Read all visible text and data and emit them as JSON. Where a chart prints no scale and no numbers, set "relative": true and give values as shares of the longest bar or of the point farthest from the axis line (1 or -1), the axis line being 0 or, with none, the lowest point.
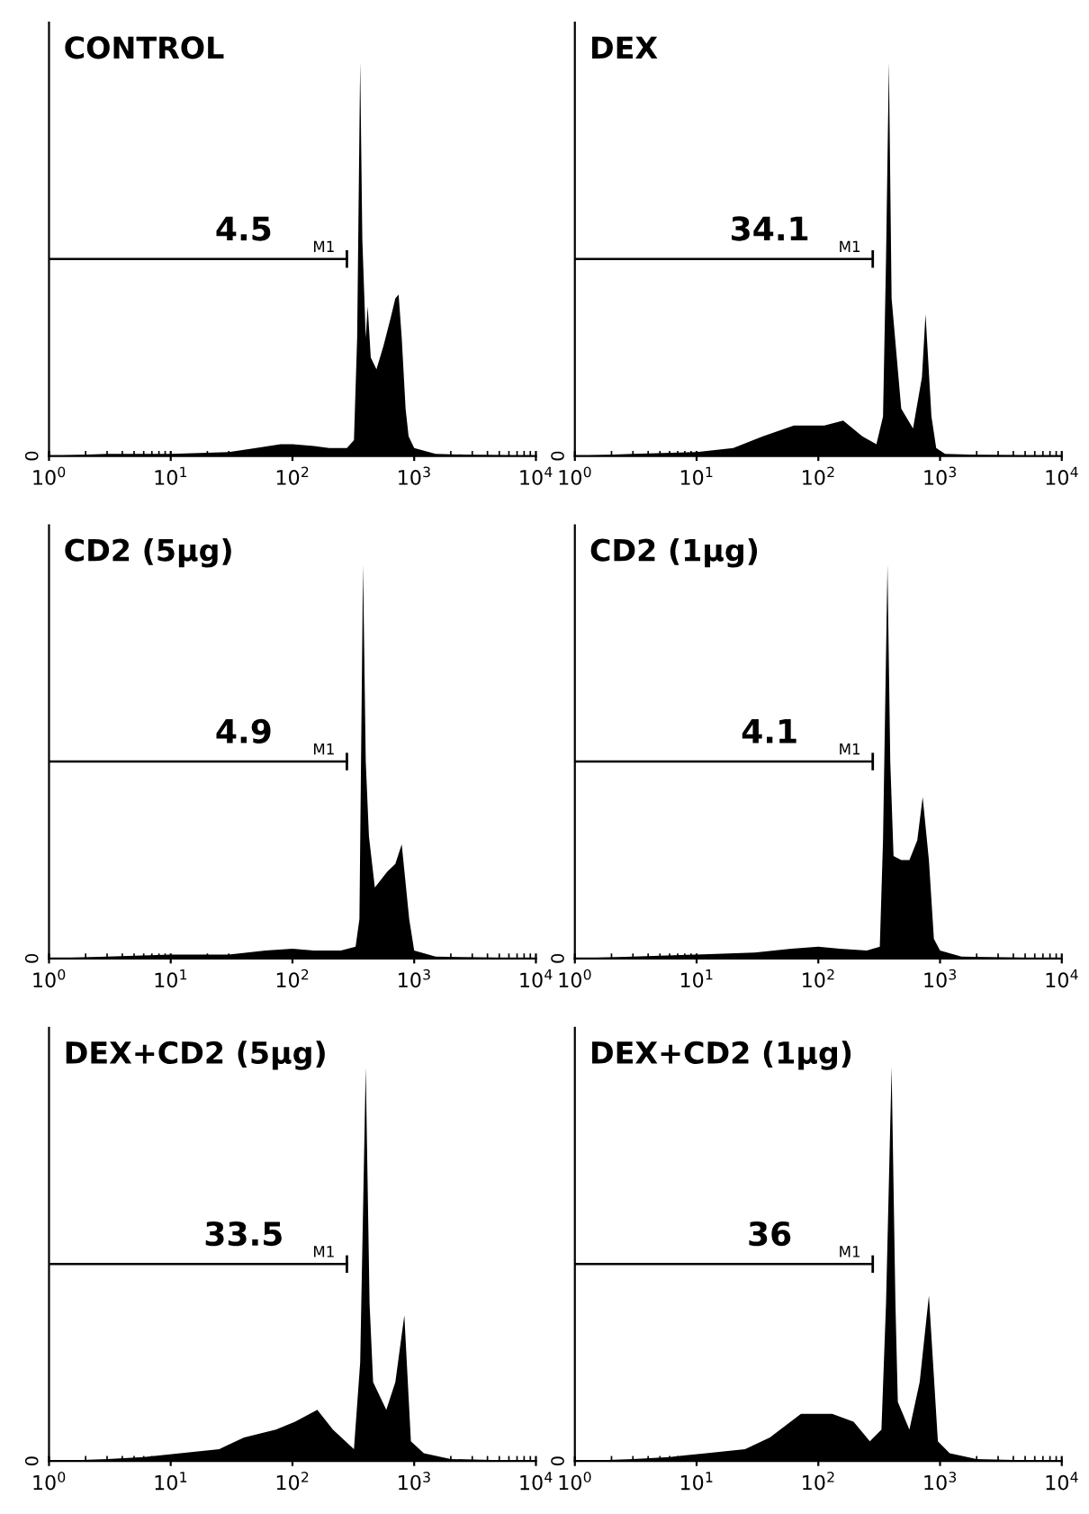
{
  "chart_data": [
    {
      "type": "area",
      "title": "CONTROL",
      "relative": true,
      "log": "x",
      "xlim": [
        1,
        10000
      ],
      "xticks": [
        {
          "value": 1,
          "label": "10$^{0}$"
        },
        {
          "value": 10,
          "label": "10$^{1}$"
        },
        {
          "value": 100,
          "label": "10$^{2}$"
        },
        {
          "value": 1000,
          "label": "10$^{3}$"
        },
        {
          "value": 10000,
          "label": "10$^{4}$"
        }
      ],
      "grid": false,
      "legend": false,
      "annotations": [
        "4.5",
        "0"
      ],
      "series": [
        {
          "color": "#000000",
          "x": [
            1,
            3,
            10,
            30,
            50,
            80,
            100,
            150,
            200,
            280,
            320,
            340,
            360,
            375,
            400,
            415,
            440,
            490,
            560,
            640,
            700,
            745,
            790,
            850,
            900,
            1000,
            1500,
            3000,
            10000
          ],
          "values": [
            0,
            0.005,
            0.005,
            0.01,
            0.02,
            0.03,
            0.03,
            0.025,
            0.02,
            0.02,
            0.04,
            0.3,
            1.0,
            0.55,
            0.3,
            0.38,
            0.25,
            0.22,
            0.28,
            0.35,
            0.4,
            0.41,
            0.3,
            0.12,
            0.05,
            0.02,
            0.005,
            0.003,
            0
          ]
        },
        {
          "type": "line",
          "name": "M1",
          "color": "#000000",
          "x": [
            1,
            280
          ],
          "values": [
            0.5,
            0.5
          ]
        }
      ]
    },
    {
      "type": "area",
      "title": "DEX",
      "relative": true,
      "log": "x",
      "xlim": [
        1,
        10000
      ],
      "xticks": [
        {
          "value": 1,
          "label": "10$^{0}$"
        },
        {
          "value": 10,
          "label": "10$^{1}$"
        },
        {
          "value": 100,
          "label": "10$^{2}$"
        },
        {
          "value": 1000,
          "label": "10$^{3}$"
        },
        {
          "value": 10000,
          "label": "10$^{4}$"
        }
      ],
      "grid": false,
      "legend": false,
      "annotations": [
        "34.1",
        "0"
      ],
      "series": [
        {
          "color": "#000000",
          "x": [
            1,
            3,
            10,
            20,
            35,
            63,
            112,
            160,
            230,
            300,
            340,
            360,
            380,
            400,
            480,
            600,
            710,
            760,
            850,
            930,
            1100,
            2000,
            10000
          ],
          "values": [
            0,
            0.005,
            0.01,
            0.02,
            0.05,
            0.077,
            0.077,
            0.09,
            0.05,
            0.03,
            0.1,
            0.5,
            1.0,
            0.4,
            0.12,
            0.07,
            0.2,
            0.36,
            0.1,
            0.02,
            0.005,
            0.003,
            0
          ]
        },
        {
          "type": "line",
          "name": "M1",
          "color": "#000000",
          "x": [
            1,
            280
          ],
          "values": [
            0.5,
            0.5
          ]
        }
      ]
    },
    {
      "type": "area",
      "title": "CD2 (5μg)",
      "relative": true,
      "log": "x",
      "xlim": [
        1,
        10000
      ],
      "xticks": [
        {
          "value": 1,
          "label": "10$^{0}$"
        },
        {
          "value": 10,
          "label": "10$^{1}$"
        },
        {
          "value": 100,
          "label": "10$^{2}$"
        },
        {
          "value": 1000,
          "label": "10$^{3}$"
        },
        {
          "value": 10000,
          "label": "10$^{4}$"
        }
      ],
      "grid": false,
      "legend": false,
      "annotations": [
        "4.9",
        "0"
      ],
      "series": [
        {
          "color": "#000000",
          "x": [
            1,
            3,
            10,
            30,
            60,
            100,
            150,
            250,
            330,
            355,
            380,
            400,
            425,
            475,
            600,
            700,
            790,
            910,
            1000,
            1500,
            3000,
            10000
          ],
          "values": [
            0,
            0.005,
            0.01,
            0.01,
            0.02,
            0.025,
            0.02,
            0.02,
            0.03,
            0.1,
            1.0,
            0.5,
            0.31,
            0.18,
            0.22,
            0.24,
            0.29,
            0.1,
            0.02,
            0.005,
            0.003,
            0
          ]
        },
        {
          "type": "line",
          "name": "M1",
          "color": "#000000",
          "x": [
            1,
            280
          ],
          "values": [
            0.5,
            0.5
          ]
        }
      ]
    },
    {
      "type": "area",
      "title": "CD2 (1μg)",
      "relative": true,
      "log": "x",
      "xlim": [
        1,
        10000
      ],
      "xticks": [
        {
          "value": 1,
          "label": "10$^{0}$"
        },
        {
          "value": 10,
          "label": "10$^{1}$"
        },
        {
          "value": 100,
          "label": "10$^{2}$"
        },
        {
          "value": 1000,
          "label": "10$^{3}$"
        },
        {
          "value": 10000,
          "label": "10$^{4}$"
        }
      ],
      "grid": false,
      "legend": false,
      "annotations": [
        "4.1",
        "0"
      ],
      "series": [
        {
          "color": "#000000",
          "x": [
            1,
            3,
            10,
            30,
            60,
            100,
            150,
            250,
            320,
            340,
            370,
            390,
            415,
            480,
            560,
            650,
            720,
            810,
            890,
            1000,
            1500,
            3000,
            10000
          ],
          "values": [
            0,
            0.005,
            0.01,
            0.015,
            0.025,
            0.03,
            0.025,
            0.02,
            0.03,
            0.3,
            1.0,
            0.5,
            0.26,
            0.25,
            0.25,
            0.3,
            0.41,
            0.25,
            0.05,
            0.02,
            0.005,
            0.003,
            0
          ]
        },
        {
          "type": "line",
          "name": "M1",
          "color": "#000000",
          "x": [
            1,
            280
          ],
          "values": [
            0.5,
            0.5
          ]
        }
      ]
    },
    {
      "type": "area",
      "title": "DEX+CD2 (5μg)",
      "relative": true,
      "log": "x",
      "xlim": [
        1,
        10000
      ],
      "xticks": [
        {
          "value": 1,
          "label": "10$^{0}$"
        },
        {
          "value": 10,
          "label": "10$^{1}$"
        },
        {
          "value": 100,
          "label": "10$^{2}$"
        },
        {
          "value": 1000,
          "label": "10$^{3}$"
        },
        {
          "value": 10000,
          "label": "10$^{4}$"
        }
      ],
      "grid": false,
      "legend": false,
      "annotations": [
        "33.5",
        "0"
      ],
      "series": [
        {
          "color": "#000000",
          "x": [
            1,
            3,
            6,
            12,
            25,
            40,
            73,
            105,
            160,
            215,
            320,
            360,
            400,
            430,
            460,
            590,
            700,
            830,
            940,
            1200,
            2000,
            10000
          ],
          "values": [
            0,
            0.005,
            0.01,
            0.02,
            0.03,
            0.06,
            0.08,
            0.1,
            0.13,
            0.08,
            0.03,
            0.25,
            1.0,
            0.4,
            0.2,
            0.13,
            0.2,
            0.37,
            0.05,
            0.02,
            0.005,
            0
          ]
        },
        {
          "type": "line",
          "name": "M1",
          "color": "#000000",
          "x": [
            1,
            280
          ],
          "values": [
            0.5,
            0.5
          ]
        }
      ]
    },
    {
      "type": "area",
      "title": "DEX+CD2 (1μg)",
      "relative": true,
      "log": "x",
      "xlim": [
        1,
        10000
      ],
      "xticks": [
        {
          "value": 1,
          "label": "10$^{0}$"
        },
        {
          "value": 10,
          "label": "10$^{1}$"
        },
        {
          "value": 100,
          "label": "10$^{2}$"
        },
        {
          "value": 1000,
          "label": "10$^{3}$"
        },
        {
          "value": 10000,
          "label": "10$^{4}$"
        }
      ],
      "grid": false,
      "legend": false,
      "annotations": [
        "36",
        "0"
      ],
      "series": [
        {
          "color": "#000000",
          "x": [
            1,
            3,
            6,
            12,
            25,
            40,
            72,
            130,
            195,
            265,
            330,
            360,
            400,
            430,
            450,
            560,
            680,
            810,
            960,
            1200,
            2000,
            10000
          ],
          "values": [
            0,
            0.005,
            0.01,
            0.02,
            0.03,
            0.06,
            0.12,
            0.12,
            0.1,
            0.05,
            0.08,
            0.4,
            1.0,
            0.4,
            0.15,
            0.08,
            0.2,
            0.42,
            0.05,
            0.02,
            0.005,
            0
          ]
        },
        {
          "type": "line",
          "name": "M1",
          "color": "#000000",
          "x": [
            1,
            280
          ],
          "values": [
            0.5,
            0.5
          ]
        }
      ]
    }
  ]
}
